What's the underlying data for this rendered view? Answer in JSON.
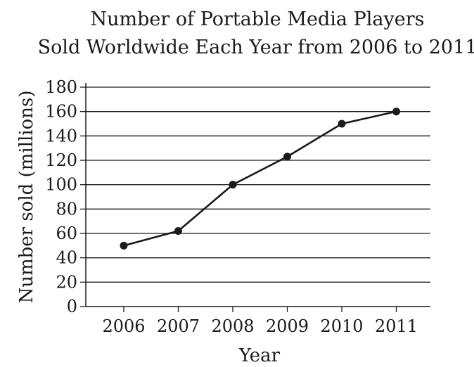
{
  "chart_data": {
    "type": "line",
    "title": [
      "Number of Portable Media Players",
      "Sold Worldwide Each Year from 2006 to 2011"
    ],
    "xlabel": "Year",
    "ylabel": "Number sold (millions)",
    "categories": [
      "2006",
      "2007",
      "2008",
      "2009",
      "2010",
      "2011"
    ],
    "series": [
      {
        "values": [
          50,
          62,
          100,
          123,
          150,
          160
        ]
      }
    ],
    "ylim": [
      0,
      180
    ],
    "yticks": [
      "0",
      "20",
      "40",
      "60",
      "80",
      "100",
      "120",
      "140",
      "160",
      "180"
    ],
    "grid": "horizontal",
    "legend": "none",
    "colors": {
      "line": "#1a1a1a",
      "grid": "#1a1a1a"
    }
  }
}
